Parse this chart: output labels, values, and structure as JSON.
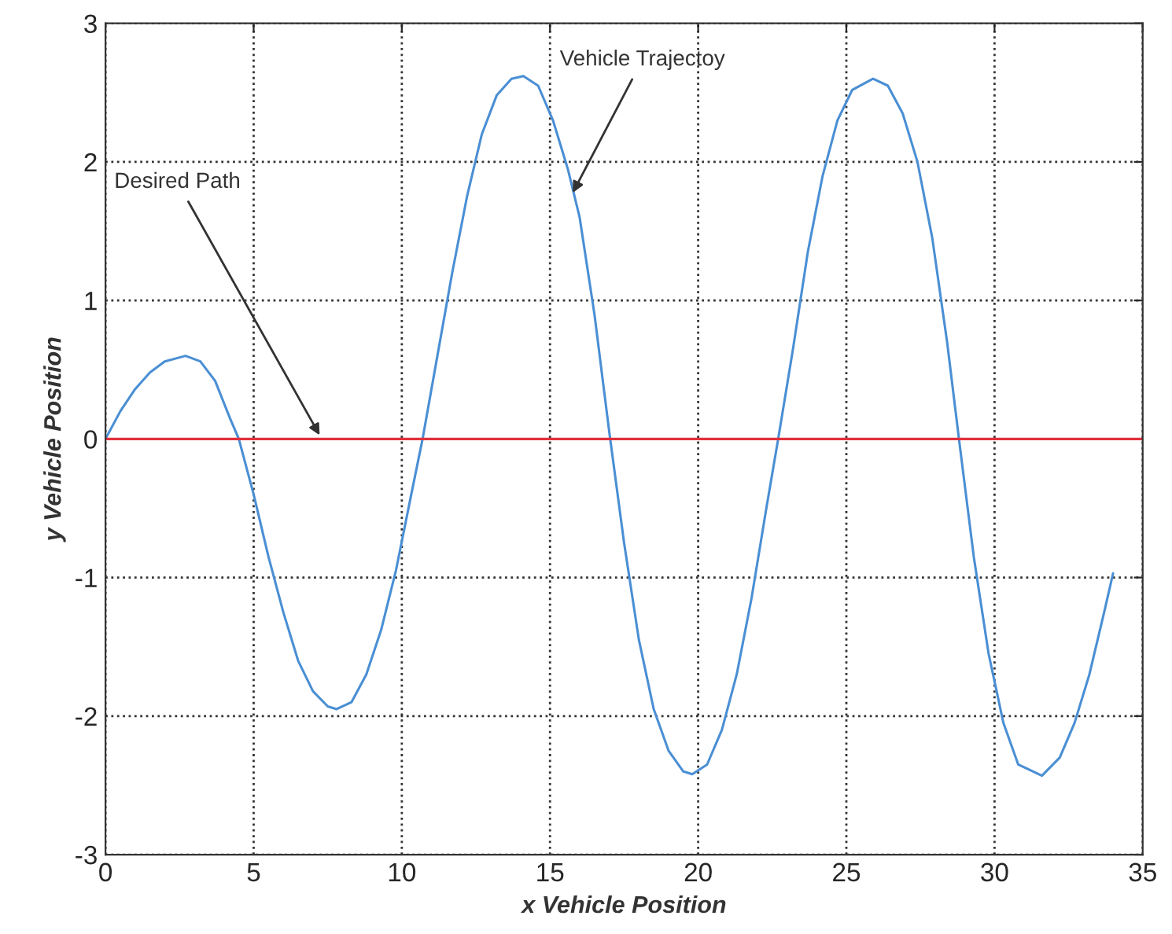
{
  "chart_data": {
    "type": "line",
    "xlabel": "x Vehicle Position",
    "ylabel": "y Vehicle Position",
    "series": [
      {
        "color": "#4a8fd4",
        "x": [
          0,
          0.5,
          1,
          1.5,
          2,
          2.7,
          3.2,
          3.7,
          4.2,
          4.5,
          5,
          5.5,
          6,
          6.5,
          7,
          7.5,
          7.8,
          8.3,
          8.8,
          9.3,
          9.8,
          10.3,
          10.7,
          11.2,
          11.7,
          12.2,
          12.7,
          13.2,
          13.7,
          14.1,
          14.6,
          15.1,
          15.6,
          16,
          16.5,
          17,
          17.5,
          18,
          18.5,
          19,
          19.5,
          19.8,
          20.3,
          20.8,
          21.3,
          21.8,
          22.3,
          22.7,
          23.2,
          23.7,
          24.2,
          24.7,
          25.2,
          25.9,
          26.4,
          26.9,
          27.4,
          27.9,
          28.4,
          28.8,
          29.3,
          29.8,
          30.3,
          30.8,
          31.6,
          32.2,
          32.7,
          33.2,
          33.7,
          34
        ],
        "values": [
          0,
          0.2,
          0.36,
          0.48,
          0.56,
          0.6,
          0.56,
          0.42,
          0.15,
          0,
          -0.4,
          -0.85,
          -1.25,
          -1.6,
          -1.82,
          -1.93,
          -1.95,
          -1.9,
          -1.7,
          -1.38,
          -0.95,
          -0.42,
          0,
          0.6,
          1.2,
          1.75,
          2.2,
          2.48,
          2.6,
          2.62,
          2.55,
          2.3,
          1.95,
          1.6,
          0.9,
          0.05,
          -0.75,
          -1.45,
          -1.95,
          -2.25,
          -2.4,
          -2.42,
          -2.35,
          -2.1,
          -1.7,
          -1.15,
          -0.5,
          0,
          0.65,
          1.35,
          1.9,
          2.3,
          2.52,
          2.6,
          2.55,
          2.35,
          2,
          1.45,
          0.7,
          0,
          -0.85,
          -1.55,
          -2.05,
          -2.35,
          -2.43,
          -2.3,
          -2.05,
          -1.7,
          -1.25,
          -0.97
        ]
      },
      {
        "color": "#e0303c",
        "x": [
          0,
          35
        ],
        "values": [
          0,
          0
        ]
      }
    ],
    "annotations": [
      {
        "text": "Desired Path",
        "x": 7.3,
        "y": 0
      },
      {
        "text": "Vehicle Trajectoy",
        "x": 15.7,
        "y": 1.75
      }
    ],
    "xlim": [
      0,
      35
    ],
    "ylim": [
      -3,
      3
    ],
    "xticks": [
      0,
      5,
      10,
      15,
      20,
      25,
      30,
      35
    ],
    "yticks": [
      -3,
      -2,
      -1,
      0,
      1,
      2,
      3
    ],
    "grid": true,
    "line_style": "solid",
    "marker": "none",
    "legend": false
  }
}
